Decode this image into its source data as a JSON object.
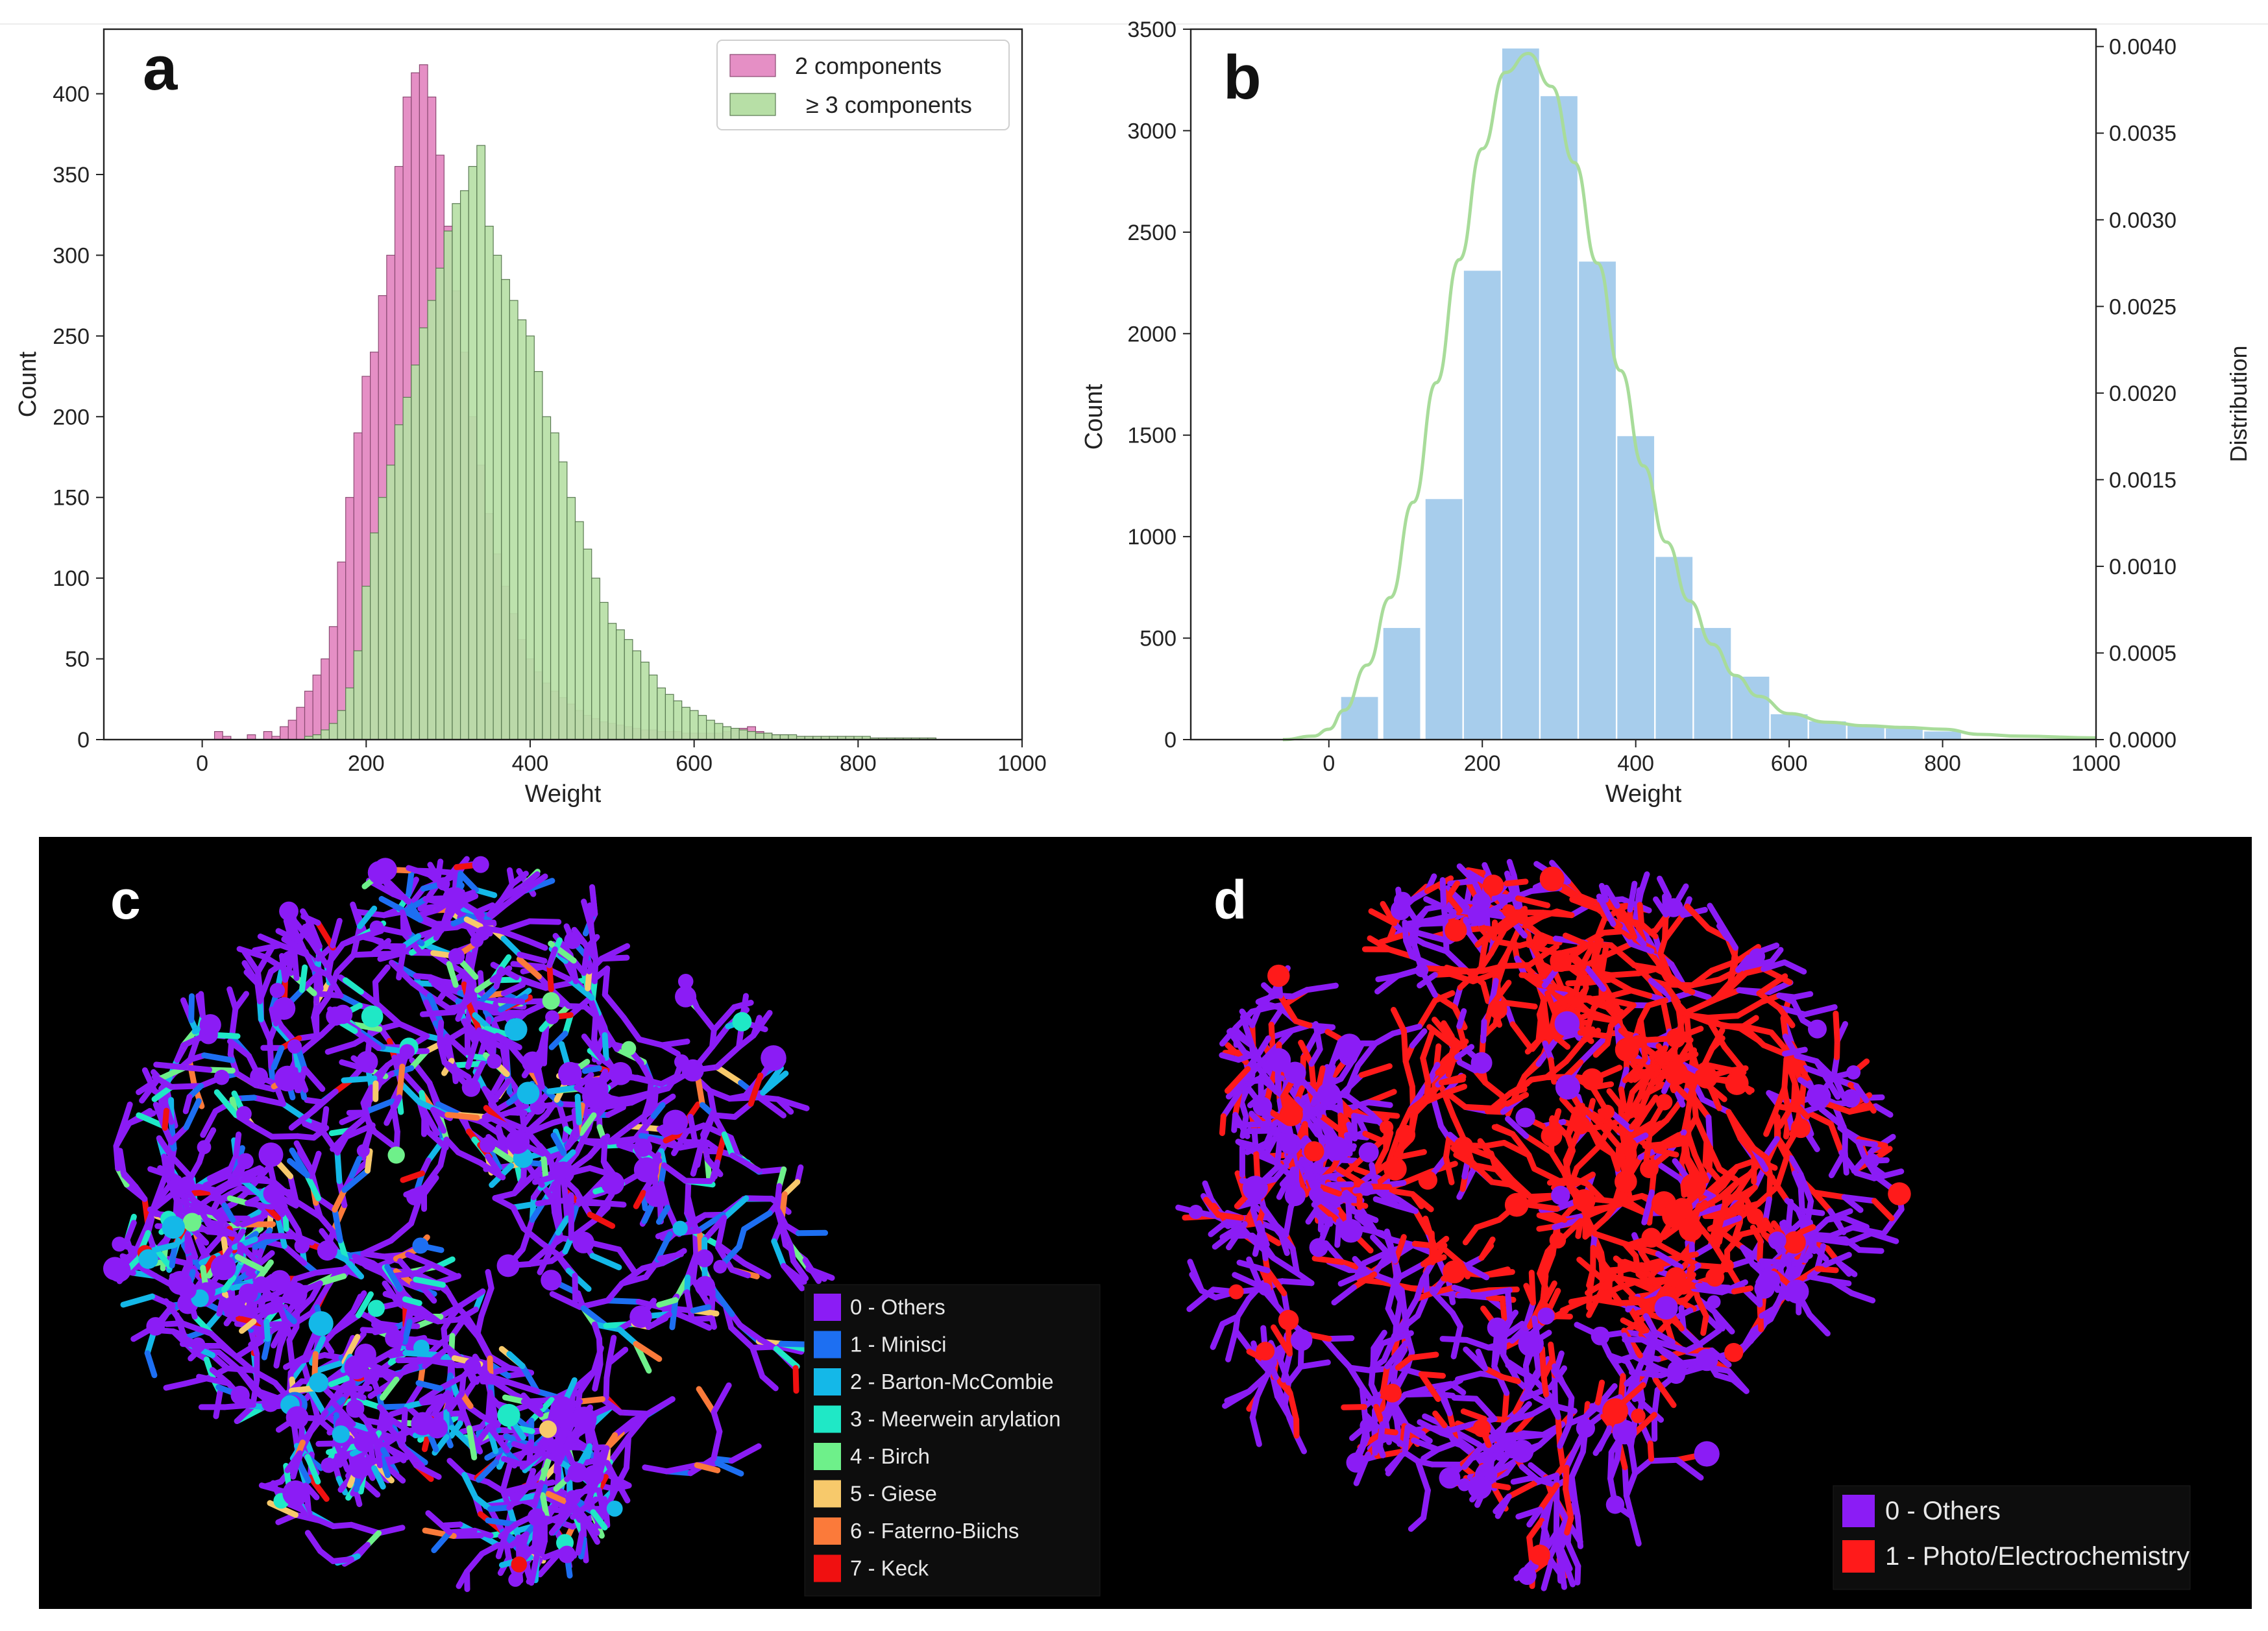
{
  "chart_data": [
    {
      "panel": "a",
      "type": "bar",
      "subtype": "overlaid-histogram",
      "title": "",
      "xlabel": "Weight",
      "ylabel": "Count",
      "xlim": [
        -120,
        1000
      ],
      "ylim": [
        0,
        440
      ],
      "xticks": [
        "0",
        "200",
        "400",
        "600",
        "800",
        "1000"
      ],
      "yticks": [
        "0",
        "50",
        "100",
        "150",
        "200",
        "250",
        "300",
        "350",
        "400"
      ],
      "bin_width": 10,
      "legend_position": "top-right",
      "series": [
        {
          "name": "2 components",
          "color": "#e58fc5",
          "edge": "#8a4a72",
          "x": [
            20,
            30,
            40,
            50,
            60,
            70,
            80,
            90,
            100,
            110,
            120,
            130,
            140,
            150,
            160,
            170,
            180,
            190,
            200,
            210,
            220,
            230,
            240,
            250,
            260,
            270,
            280,
            290,
            300,
            310,
            320,
            330,
            340,
            350,
            360,
            370,
            380,
            390,
            400,
            410,
            420,
            430,
            440,
            450,
            460,
            470,
            480,
            490,
            500,
            510,
            520,
            530,
            540,
            550,
            560,
            570,
            580,
            590,
            600,
            610,
            620,
            630,
            640,
            650,
            660,
            670,
            680,
            690,
            700,
            710,
            720,
            730,
            740,
            750,
            760,
            770,
            780,
            790,
            800,
            810,
            820,
            830,
            840,
            850,
            860,
            870,
            880,
            890
          ],
          "values": [
            5,
            2,
            0,
            0,
            3,
            0,
            5,
            2,
            8,
            12,
            20,
            30,
            40,
            50,
            70,
            110,
            150,
            190,
            225,
            240,
            275,
            300,
            355,
            398,
            413,
            418,
            398,
            362,
            318,
            278,
            240,
            200,
            170,
            140,
            115,
            95,
            78,
            62,
            50,
            42,
            35,
            30,
            26,
            22,
            18,
            15,
            13,
            11,
            10,
            9,
            8,
            7,
            6,
            6,
            5,
            5,
            5,
            4,
            4,
            4,
            4,
            4,
            5,
            6,
            7,
            8,
            5,
            4,
            3,
            3,
            2,
            2,
            2,
            2,
            2,
            2,
            2,
            2,
            1,
            1,
            1,
            1,
            1,
            1,
            1,
            1,
            1,
            1
          ]
        },
        {
          "name": "≥ 3 components",
          "color": "#b7dfa6",
          "edge": "#5a7a52",
          "x": [
            100,
            110,
            120,
            130,
            140,
            150,
            160,
            170,
            180,
            190,
            200,
            210,
            220,
            230,
            240,
            250,
            260,
            270,
            280,
            290,
            300,
            310,
            320,
            330,
            340,
            350,
            360,
            370,
            380,
            390,
            400,
            410,
            420,
            430,
            440,
            450,
            460,
            470,
            480,
            490,
            500,
            510,
            520,
            530,
            540,
            550,
            560,
            570,
            580,
            590,
            600,
            610,
            620,
            630,
            640,
            650,
            660,
            670,
            680,
            690,
            700,
            710,
            720,
            730,
            740,
            750,
            760,
            770,
            780,
            790,
            800,
            810,
            820,
            830,
            840,
            850,
            860,
            870,
            880,
            890
          ],
          "values": [
            0,
            0,
            0,
            2,
            3,
            6,
            10,
            18,
            32,
            55,
            95,
            128,
            150,
            170,
            195,
            212,
            232,
            255,
            272,
            292,
            315,
            332,
            340,
            355,
            368,
            318,
            300,
            285,
            272,
            260,
            250,
            228,
            200,
            190,
            172,
            150,
            135,
            118,
            100,
            85,
            72,
            68,
            62,
            55,
            48,
            40,
            32,
            28,
            24,
            20,
            18,
            15,
            12,
            10,
            8,
            7,
            6,
            5,
            4,
            4,
            3,
            3,
            3,
            2,
            2,
            2,
            2,
            2,
            2,
            2,
            2,
            2,
            1,
            1,
            1,
            1,
            1,
            1,
            1,
            1
          ]
        }
      ]
    },
    {
      "panel": "b",
      "type": "bar",
      "subtype": "histogram-with-density",
      "title": "",
      "xlabel": "Weight",
      "ylabel": "Count",
      "y2label": "Distribution",
      "xlim": [
        -180,
        1000
      ],
      "ylim": [
        0,
        3500
      ],
      "y2lim": [
        0,
        0.0041
      ],
      "xticks": [
        "0",
        "200",
        "400",
        "600",
        "800",
        "1000"
      ],
      "yticks": [
        "0",
        "500",
        "1000",
        "1500",
        "2000",
        "2500",
        "3000",
        "3500"
      ],
      "y2ticks": [
        "0.0000",
        "0.0005",
        "0.0010",
        "0.0015",
        "0.0020",
        "0.0025",
        "0.0030",
        "0.0035",
        "0.0040"
      ],
      "bar_color": "#a7cdec",
      "line_color": "#a8dc9a",
      "bins": {
        "x": [
          40,
          95,
          150,
          200,
          250,
          300,
          350,
          400,
          450,
          500,
          550,
          600,
          650,
          700,
          750,
          800
        ],
        "values": [
          210,
          550,
          1185,
          2310,
          3405,
          3170,
          2355,
          1495,
          900,
          550,
          310,
          125,
          90,
          70,
          55,
          40
        ]
      },
      "density": {
        "x": [
          -60,
          -20,
          0,
          20,
          50,
          80,
          110,
          140,
          170,
          200,
          230,
          260,
          290,
          320,
          350,
          380,
          410,
          440,
          470,
          500,
          530,
          560,
          600,
          650,
          700,
          750,
          800,
          850,
          900,
          1000
        ],
        "values": [
          0,
          2e-05,
          6e-05,
          0.00017,
          0.00043,
          0.00082,
          0.00137,
          0.00206,
          0.00277,
          0.00341,
          0.00385,
          0.00396,
          0.00377,
          0.00333,
          0.00275,
          0.00213,
          0.00158,
          0.00114,
          0.0008,
          0.00055,
          0.00037,
          0.00025,
          0.00015,
          0.0001,
          8e-05,
          7e-05,
          6e-05,
          3e-05,
          2e-05,
          1e-05
        ]
      }
    },
    {
      "panel": "c",
      "type": "scatter",
      "subtype": "tree-map-embedding",
      "legend_position": "bottom-right",
      "legend": [
        {
          "label": "0 - Others",
          "color": "#8b1cf5"
        },
        {
          "label": "1 - Minisci",
          "color": "#1d6ff2"
        },
        {
          "label": "2 - Barton-McCombie",
          "color": "#14b8e8"
        },
        {
          "label": "3 - Meerwein arylation",
          "color": "#1fe8c6"
        },
        {
          "label": "4 - Birch",
          "color": "#6ef08a"
        },
        {
          "label": "5 - Giese",
          "color": "#f7c96b"
        },
        {
          "label": "6 - Faterno-Biichs",
          "color": "#fb7a3a"
        },
        {
          "label": "7 - Keck",
          "color": "#f01010"
        }
      ]
    },
    {
      "panel": "d",
      "type": "scatter",
      "subtype": "tree-map-embedding",
      "legend_position": "bottom-right",
      "legend": [
        {
          "label": "0 - Others",
          "color": "#8b1cf5"
        },
        {
          "label": "1 - Photo/Electrochemistry",
          "color": "#ff1a1a"
        }
      ]
    }
  ],
  "panels": {
    "a": {
      "label": "a",
      "legend": [
        "2 components",
        "≥ 3 components"
      ]
    },
    "b": {
      "label": "b"
    },
    "c": {
      "label": "c"
    },
    "d": {
      "label": "d"
    }
  }
}
